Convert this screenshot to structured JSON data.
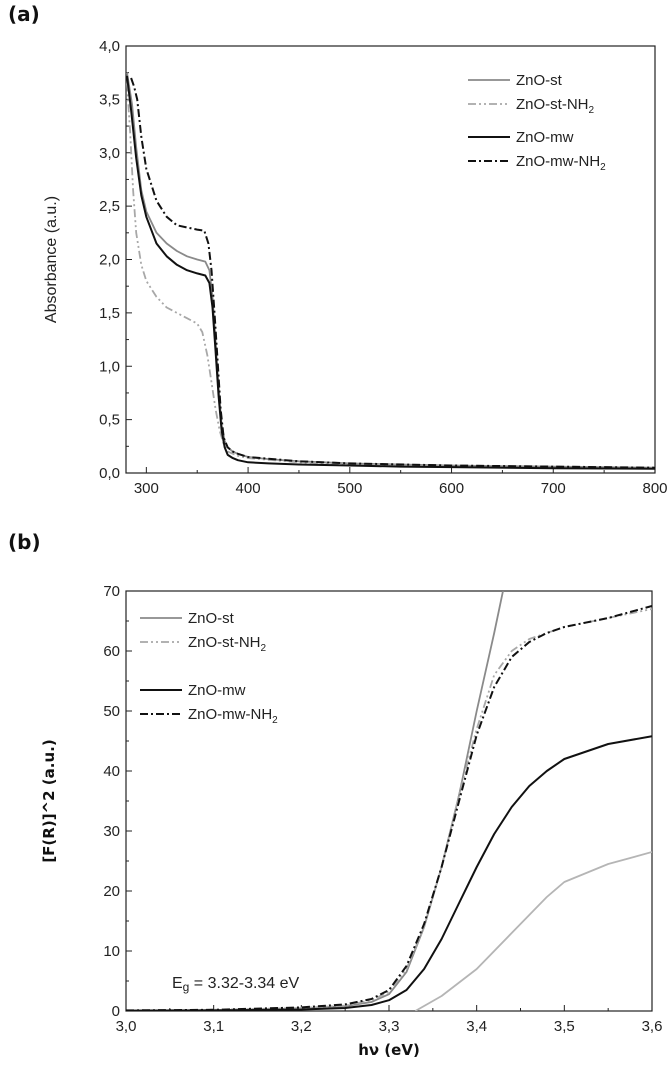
{
  "chart_data": [
    {
      "panel": "(a)",
      "type": "line",
      "xlabel": "",
      "ylabel": "Absorbance (a.u.)",
      "xlim": [
        280,
        800
      ],
      "ylim": [
        0,
        4.0
      ],
      "xticks": [
        "300",
        "400",
        "500",
        "600",
        "700",
        "800"
      ],
      "yticks": [
        "0,0",
        "0,5",
        "1,0",
        "1,5",
        "2,0",
        "2,5",
        "3,0",
        "3,5",
        "4,0"
      ],
      "legend_position": "top-right",
      "series": [
        {
          "name": "ZnO-st",
          "color": "#8a8a8a",
          "dash": "",
          "x": [
            281,
            286,
            290,
            295,
            300,
            310,
            320,
            330,
            340,
            350,
            358,
            362,
            365,
            368,
            371,
            374,
            377,
            380,
            385,
            390,
            400,
            420,
            450,
            500,
            550,
            600,
            650,
            700,
            750,
            800
          ],
          "y": [
            3.75,
            3.45,
            3.05,
            2.65,
            2.45,
            2.25,
            2.15,
            2.08,
            2.03,
            2.0,
            1.98,
            1.9,
            1.65,
            1.25,
            0.8,
            0.45,
            0.3,
            0.24,
            0.2,
            0.18,
            0.15,
            0.13,
            0.11,
            0.09,
            0.08,
            0.07,
            0.065,
            0.06,
            0.055,
            0.05
          ]
        },
        {
          "name": "ZnO-st-NH2",
          "color": "#a8a8a8",
          "dash": "8,3,2,3,2,3",
          "x": [
            281,
            284,
            287,
            290,
            295,
            300,
            310,
            320,
            330,
            340,
            350,
            355,
            360,
            364,
            368,
            372,
            376,
            380,
            390,
            400,
            450,
            500,
            600,
            700,
            800
          ],
          "y": [
            3.65,
            3.2,
            2.65,
            2.25,
            1.95,
            1.8,
            1.65,
            1.55,
            1.5,
            1.45,
            1.4,
            1.32,
            1.1,
            0.85,
            0.6,
            0.4,
            0.27,
            0.2,
            0.16,
            0.14,
            0.1,
            0.08,
            0.06,
            0.05,
            0.045
          ]
        },
        {
          "name": "ZnO-mw",
          "color": "#111111",
          "dash": "",
          "x": [
            281,
            285,
            290,
            295,
            300,
            310,
            320,
            330,
            340,
            350,
            358,
            362,
            365,
            368,
            371,
            374,
            377,
            380,
            385,
            390,
            400,
            420,
            450,
            500,
            550,
            600,
            700,
            800
          ],
          "y": [
            3.72,
            3.4,
            2.95,
            2.6,
            2.4,
            2.15,
            2.03,
            1.95,
            1.9,
            1.87,
            1.85,
            1.78,
            1.55,
            1.15,
            0.72,
            0.4,
            0.24,
            0.17,
            0.14,
            0.12,
            0.1,
            0.09,
            0.08,
            0.07,
            0.06,
            0.055,
            0.045,
            0.04
          ]
        },
        {
          "name": "ZnO-mw-NH2",
          "color": "#111111",
          "dash": "8,3,2,3",
          "x": [
            285,
            288,
            291,
            295,
            300,
            310,
            320,
            330,
            340,
            350,
            357,
            361,
            364,
            367,
            370,
            373,
            376,
            380,
            385,
            390,
            400,
            450,
            500,
            600,
            700,
            800
          ],
          "y": [
            3.7,
            3.62,
            3.5,
            3.15,
            2.85,
            2.55,
            2.4,
            2.32,
            2.3,
            2.28,
            2.27,
            2.15,
            1.9,
            1.5,
            1.05,
            0.6,
            0.33,
            0.24,
            0.2,
            0.18,
            0.15,
            0.11,
            0.09,
            0.07,
            0.06,
            0.05
          ]
        }
      ]
    },
    {
      "panel": "(b)",
      "type": "line",
      "xlabel": "hν (eV)",
      "ylabel": "[F(R)]^2 (a.u.)",
      "xlim": [
        3.0,
        3.6
      ],
      "ylim": [
        0,
        70
      ],
      "xticks": [
        "3,0",
        "3,1",
        "3,2",
        "3,3",
        "3,4",
        "3,5",
        "3,6"
      ],
      "yticks": [
        "0",
        "10",
        "20",
        "30",
        "40",
        "50",
        "60",
        "70"
      ],
      "legend_position": "top-left",
      "annotation": "Eg = 3.32-3.34 eV",
      "series": [
        {
          "name": "ZnO-st",
          "color": "#8a8a8a",
          "dash": "",
          "x": [
            3.0,
            3.1,
            3.2,
            3.25,
            3.28,
            3.3,
            3.32,
            3.34,
            3.36,
            3.38,
            3.4,
            3.42,
            3.43
          ],
          "y": [
            0.1,
            0.15,
            0.4,
            0.8,
            1.5,
            2.8,
            6.5,
            14,
            24,
            36,
            50,
            63,
            70
          ]
        },
        {
          "name": "ZnO-st-NH2",
          "color": "#a8a8a8",
          "dash": "8,3,2,3,2,3",
          "x": [
            3.0,
            3.1,
            3.2,
            3.25,
            3.28,
            3.3,
            3.32,
            3.34,
            3.36,
            3.38,
            3.4,
            3.42,
            3.44,
            3.46,
            3.48,
            3.5,
            3.55,
            3.6
          ],
          "y": [
            0.1,
            0.2,
            0.5,
            0.9,
            1.8,
            3.2,
            7,
            14,
            24,
            36,
            47,
            56,
            60,
            62,
            63,
            64,
            65.5,
            67
          ]
        },
        {
          "name": "ZnO-mw",
          "color": "#111111",
          "dash": "",
          "x": [
            3.0,
            3.1,
            3.2,
            3.25,
            3.28,
            3.3,
            3.32,
            3.34,
            3.36,
            3.38,
            3.4,
            3.42,
            3.44,
            3.46,
            3.48,
            3.5,
            3.55,
            3.6
          ],
          "y": [
            0.05,
            0.1,
            0.25,
            0.5,
            1.0,
            1.8,
            3.5,
            7,
            12,
            18,
            24,
            29.5,
            34,
            37.5,
            40,
            42,
            44.5,
            45.8
          ]
        },
        {
          "name": "ZnO-mw-NH2",
          "color": "#111111",
          "dash": "8,3,2,3",
          "x": [
            3.0,
            3.1,
            3.2,
            3.25,
            3.28,
            3.3,
            3.32,
            3.34,
            3.36,
            3.38,
            3.4,
            3.42,
            3.44,
            3.46,
            3.48,
            3.5,
            3.55,
            3.6
          ],
          "y": [
            0.1,
            0.2,
            0.6,
            1.1,
            2.0,
            3.5,
            7.5,
            14.5,
            24,
            35,
            46,
            54,
            59,
            61.5,
            63,
            64,
            65.5,
            67.5
          ]
        },
        {
          "name": "",
          "color": "#b5b5b5",
          "dash": "",
          "x": [
            3.33,
            3.36,
            3.4,
            3.44,
            3.48,
            3.5,
            3.55,
            3.6
          ],
          "y": [
            0,
            2.5,
            7,
            13,
            19,
            21.5,
            24.5,
            26.5
          ]
        }
      ]
    }
  ],
  "legend_a": [
    "ZnO-st",
    "ZnO-st-NH",
    "ZnO-mw",
    "ZnO-mw-NH"
  ],
  "legend_b": [
    "ZnO-st",
    "ZnO-st-NH",
    "ZnO-mw",
    "ZnO-mw-NH"
  ],
  "subscript_2": "2",
  "panel_a_label": "(a)",
  "panel_b_label": "(b)",
  "eg_prefix": "E",
  "eg_sub": "g",
  "eg_value": " = 3.32-3.34 eV"
}
